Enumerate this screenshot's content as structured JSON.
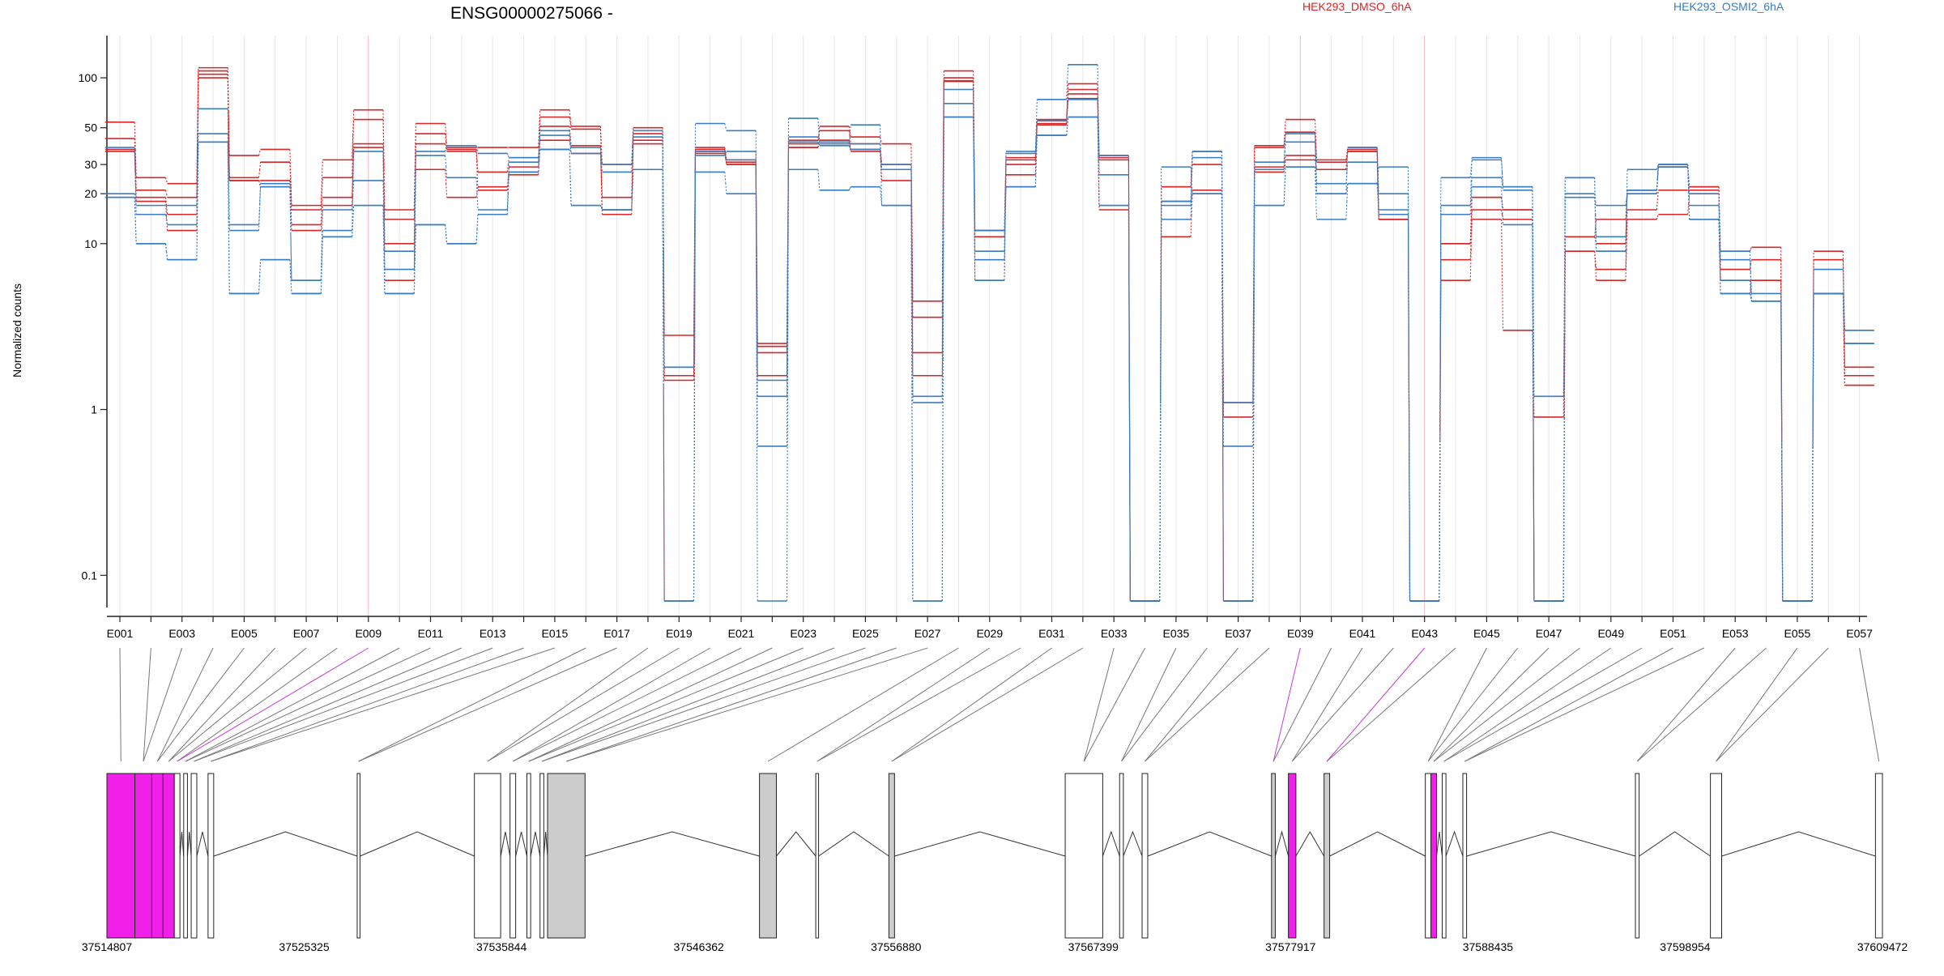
{
  "chart_data": {
    "type": "line",
    "title": "ENSG00000275066 -",
    "ylabel": "Normalized counts",
    "xlabel": "",
    "yscale": "log",
    "ylim": [
      0.07,
      150
    ],
    "yticks": [
      {
        "value": 0.1,
        "label": "0.1"
      },
      {
        "value": 1,
        "label": "1"
      },
      {
        "value": 10,
        "label": "10"
      },
      {
        "value": 20,
        "label": "20"
      },
      {
        "value": 30,
        "label": "30"
      },
      {
        "value": 50,
        "label": "50"
      },
      {
        "value": 100,
        "label": "100"
      }
    ],
    "legend": [
      {
        "name": "HEK293_DMSO_6hA",
        "color": "#d62728"
      },
      {
        "name": "HEK293_OSMI2_6hA",
        "color": "#3a7dbf"
      }
    ],
    "grid": "faint vertical lines per exon",
    "exons": [
      "E001",
      "E002",
      "E003",
      "E004",
      "E005",
      "E006",
      "E007",
      "E008",
      "E009",
      "E010",
      "E011",
      "E012",
      "E013",
      "E014",
      "E015",
      "E016",
      "E017",
      "E018",
      "E019",
      "E020",
      "E021",
      "E022",
      "E023",
      "E024",
      "E025",
      "E026",
      "E027",
      "E028",
      "E029",
      "E030",
      "E031",
      "E032",
      "E033",
      "E034",
      "E035",
      "E036",
      "E037",
      "E038",
      "E039",
      "E040",
      "E041",
      "E042",
      "E043",
      "E044",
      "E045",
      "E046",
      "E047",
      "E048",
      "E049",
      "E050",
      "E051",
      "E052",
      "E053",
      "E054",
      "E055",
      "E056",
      "E057"
    ],
    "exon_tick_labels": [
      "E001",
      "E003",
      "E005",
      "E007",
      "E009",
      "E011",
      "E013",
      "E015",
      "E017",
      "E019",
      "E021",
      "E023",
      "E025",
      "E027",
      "E029",
      "E031",
      "E033",
      "E035",
      "E037",
      "E039",
      "E041",
      "E043",
      "E045",
      "E047",
      "E049",
      "E051",
      "E053",
      "E055",
      "E057"
    ],
    "highlighted_exons": [
      "E009",
      "E039",
      "E043"
    ],
    "series": [
      {
        "group": "HEK293_DMSO_6hA",
        "color": "#d62728",
        "values": [
          54,
          25,
          23,
          115,
          34,
          37,
          17,
          32,
          64,
          16,
          53,
          38,
          38,
          38,
          64,
          51,
          30,
          50,
          2.8,
          38,
          32,
          2.5,
          40,
          51,
          44,
          40,
          4.5,
          110,
          12,
          33,
          56,
          92,
          34,
          0.07,
          22,
          36,
          0.07,
          39,
          56,
          32,
          38,
          14,
          0.07,
          10,
          19,
          16,
          0.07,
          11,
          14,
          21,
          29,
          22,
          9,
          9.5,
          0.07,
          9,
          1.8
        ]
      },
      {
        "group": "HEK293_DMSO_6hA",
        "color": "#d62728",
        "values": [
          43,
          21,
          19,
          110,
          25,
          31,
          16,
          25,
          56,
          14,
          46,
          37,
          27,
          33,
          58,
          49,
          19,
          46,
          1.6,
          37,
          31,
          2.4,
          42,
          48,
          40,
          30,
          3.6,
          100,
          12,
          32,
          55,
          85,
          33,
          0.07,
          22,
          30,
          1.1,
          38,
          47,
          31,
          36,
          14,
          0.07,
          10,
          19,
          16,
          0.07,
          11,
          10,
          21,
          29,
          22,
          7,
          8,
          0.07,
          8,
          1.6
        ]
      },
      {
        "group": "HEK293_DMSO_6hA",
        "color": "#d62728",
        "values": [
          37,
          19,
          15,
          105,
          24,
          24,
          13,
          19,
          40,
          10,
          40,
          36,
          21,
          29,
          51,
          39,
          16,
          40,
          1.5,
          36,
          30,
          2.2,
          38,
          42,
          37,
          28,
          2.2,
          96,
          11,
          26,
          53,
          80,
          32,
          0.07,
          18,
          21,
          0.9,
          29,
          34,
          28,
          37,
          15,
          0.07,
          8,
          16,
          14,
          0.07,
          9,
          7,
          16,
          21,
          21,
          6,
          6,
          0.07,
          5,
          1.4
        ]
      },
      {
        "group": "HEK293_DMSO_6hA",
        "color": "#d62728",
        "values": [
          36,
          18,
          12,
          100,
          24,
          22,
          12,
          17,
          38,
          6,
          28,
          19,
          22,
          26,
          42,
          35,
          15,
          42,
          0.07,
          35,
          30,
          1.6,
          38,
          42,
          36,
          24,
          1.6,
          95,
          6,
          30,
          52,
          75,
          16,
          0.07,
          11,
          20,
          0.07,
          27,
          32,
          28,
          36,
          14,
          0.07,
          6,
          14,
          3,
          0.9,
          9,
          6,
          14,
          15,
          20,
          5,
          6,
          0.07,
          5,
          1.4
        ]
      },
      {
        "group": "HEK293_OSMI2_6hA",
        "color": "#3a7dbf",
        "values": [
          38,
          15,
          13,
          65,
          12,
          22,
          6,
          12,
          36,
          9,
          36,
          39,
          35,
          33,
          48,
          38,
          30,
          48,
          1.8,
          34,
          36,
          1.5,
          41,
          39,
          37,
          30,
          1.2,
          85,
          6,
          36,
          55,
          74,
          34,
          0.07,
          18,
          36,
          1.1,
          28,
          46,
          20,
          38,
          20,
          0.07,
          15,
          22,
          13,
          0.07,
          19,
          17,
          20,
          29,
          20,
          9,
          5,
          0.07,
          7,
          3
        ]
      },
      {
        "group": "HEK293_OSMI2_6hA",
        "color": "#3a7dbf",
        "values": [
          20,
          17,
          17,
          46,
          13,
          23,
          6,
          16,
          24,
          7,
          34,
          25,
          16,
          31,
          45,
          35,
          27,
          44,
          1.8,
          36,
          32,
          1.2,
          44,
          41,
          40,
          28,
          1.1,
          70,
          9,
          35,
          74,
          120,
          26,
          0.07,
          14,
          33,
          0.6,
          31,
          41,
          23,
          31,
          16,
          0.07,
          17,
          25,
          21,
          1.2,
          20,
          11,
          20,
          30,
          17,
          8,
          4.5,
          0.07,
          5,
          3
        ]
      },
      {
        "group": "HEK293_OSMI2_6hA",
        "color": "#3a7dbf",
        "values": [
          19,
          10,
          8,
          41,
          5,
          8,
          5,
          11,
          17,
          5,
          13,
          10,
          15,
          27,
          37,
          17,
          16,
          28,
          0.07,
          27,
          20,
          0.6,
          28,
          21,
          22,
          17,
          0.07,
          58,
          12,
          22,
          45,
          58,
          17,
          0.07,
          17,
          20,
          0.07,
          17,
          29,
          14,
          23,
          15,
          0.07,
          17,
          33,
          22,
          0.07,
          25,
          9,
          21,
          30,
          14,
          5,
          4.5,
          0.07,
          5,
          2.5
        ]
      },
      {
        "group": "HEK293_OSMI2_6hA",
        "color": "#3a7dbf",
        "values": [
          19,
          10,
          8,
          41,
          5,
          8,
          5,
          11,
          17,
          5,
          13,
          10,
          15,
          27,
          37,
          17,
          16,
          28,
          0.07,
          53,
          48,
          0.07,
          57,
          40,
          52,
          17,
          0.07,
          58,
          8,
          22,
          45,
          58,
          17,
          0.07,
          29,
          20,
          0.07,
          17,
          29,
          20,
          23,
          29,
          0.07,
          25,
          32,
          22,
          0.07,
          25,
          9,
          28,
          30,
          14,
          6,
          4.5,
          0.07,
          5,
          2.5
        ]
      }
    ],
    "genomic_axis": {
      "labels": [
        "37514807",
        "37525325",
        "37535844",
        "37546362",
        "37556880",
        "37567399",
        "37577917",
        "37588435",
        "37598954",
        "37609472"
      ],
      "start": 37514807,
      "end": 37609472
    },
    "gene_model": {
      "pink_fill": "#f020e8",
      "gray_fill": "#cccccc",
      "blocks": [
        {
          "start": 37514807,
          "end": 37516300,
          "fill": "pink"
        },
        {
          "start": 37516300,
          "end": 37517200,
          "fill": "pink"
        },
        {
          "start": 37517200,
          "end": 37517800,
          "fill": "pink"
        },
        {
          "start": 37517800,
          "end": 37518400,
          "fill": "pink"
        },
        {
          "start": 37518400,
          "end": 37518700,
          "fill": "white"
        },
        {
          "start": 37518900,
          "end": 37519100,
          "fill": "white"
        },
        {
          "start": 37519300,
          "end": 37519600,
          "fill": "white"
        },
        {
          "start": 37520200,
          "end": 37520500,
          "fill": "white"
        },
        {
          "start": 37528150,
          "end": 37528300,
          "fill": "white"
        },
        {
          "start": 37534400,
          "end": 37535800,
          "fill": "white"
        },
        {
          "start": 37536300,
          "end": 37536600,
          "fill": "white"
        },
        {
          "start": 37537200,
          "end": 37537400,
          "fill": "white"
        },
        {
          "start": 37537900,
          "end": 37538100,
          "fill": "white"
        },
        {
          "start": 37538300,
          "end": 37540300,
          "fill": "gray"
        },
        {
          "start": 37549600,
          "end": 37550500,
          "fill": "gray"
        },
        {
          "start": 37552600,
          "end": 37552750,
          "fill": "white"
        },
        {
          "start": 37556500,
          "end": 37556800,
          "fill": "gray"
        },
        {
          "start": 37565900,
          "end": 37567900,
          "fill": "white"
        },
        {
          "start": 37568800,
          "end": 37569000,
          "fill": "white"
        },
        {
          "start": 37570000,
          "end": 37570300,
          "fill": "white"
        },
        {
          "start": 37576900,
          "end": 37577100,
          "fill": "gray"
        },
        {
          "start": 37577800,
          "end": 37578200,
          "fill": "pink"
        },
        {
          "start": 37579700,
          "end": 37580000,
          "fill": "gray"
        },
        {
          "start": 37585100,
          "end": 37585400,
          "fill": "white"
        },
        {
          "start": 37585400,
          "end": 37585700,
          "fill": "pink"
        },
        {
          "start": 37586000,
          "end": 37586200,
          "fill": "white"
        },
        {
          "start": 37587100,
          "end": 37587300,
          "fill": "white"
        },
        {
          "start": 37596300,
          "end": 37596500,
          "fill": "white"
        },
        {
          "start": 37600300,
          "end": 37600900,
          "fill": "white"
        },
        {
          "start": 37609100,
          "end": 37609472,
          "fill": "white"
        }
      ]
    }
  }
}
